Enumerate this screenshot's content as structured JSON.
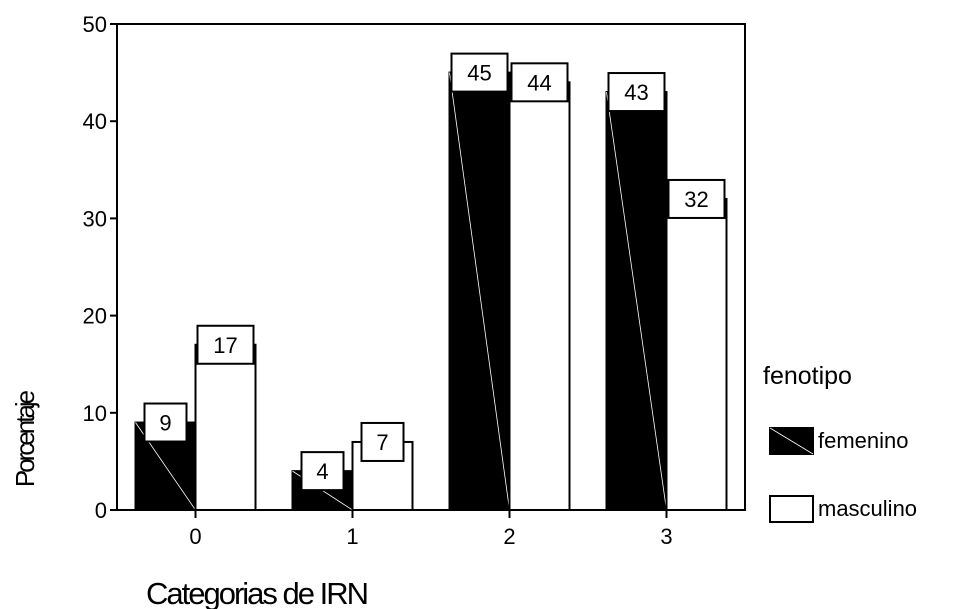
{
  "chart_data": {
    "type": "bar",
    "xlabel": "Categorias de IRN",
    "ylabel": "Porcentaje",
    "categories": [
      "0",
      "1",
      "2",
      "3"
    ],
    "ylim": [
      0,
      50
    ],
    "yticks": [
      "0",
      "10",
      "20",
      "30",
      "40",
      "50"
    ],
    "grid": false,
    "legend_position": "right",
    "legend_title": "fenotipo",
    "series": [
      {
        "name": "femenino",
        "values": [
          9,
          4,
          45,
          43
        ],
        "labels": [
          "9",
          "4",
          "45",
          "43"
        ],
        "color": "#000000"
      },
      {
        "name": "masculino",
        "values": [
          17,
          7,
          44,
          32
        ],
        "labels": [
          "17",
          "7",
          "44",
          "32"
        ],
        "color": "#ffffff"
      }
    ]
  }
}
